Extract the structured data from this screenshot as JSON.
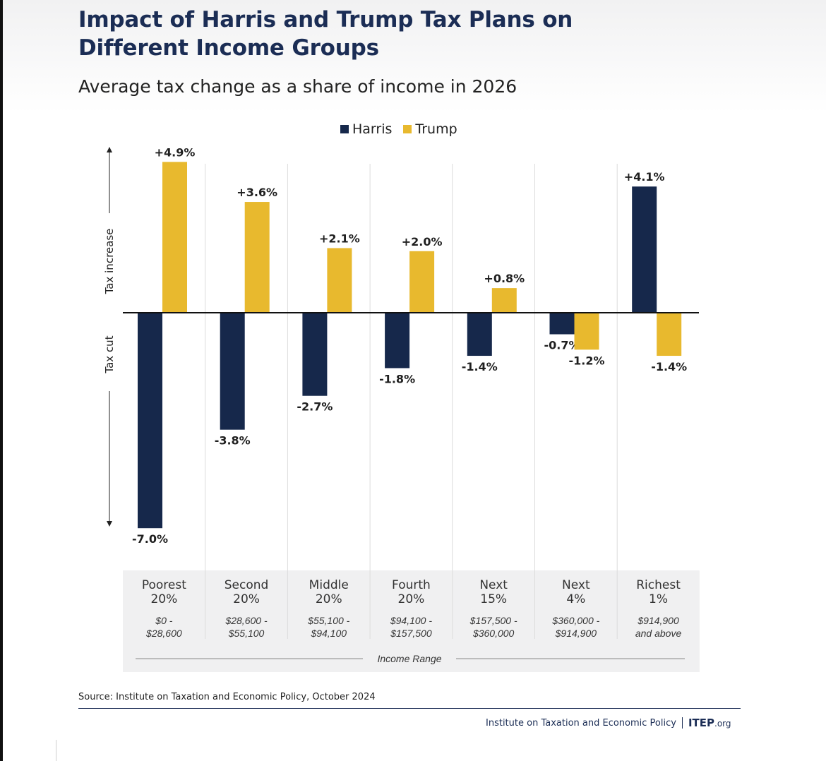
{
  "header": {
    "title_line1": "Impact of Harris and Trump Tax Plans on",
    "title_line2": "Different Income Groups",
    "subtitle": "Average tax change as a share of income in 2026"
  },
  "legend": {
    "harris": "Harris",
    "trump": "Trump"
  },
  "colors": {
    "harris": "#16284b",
    "trump": "#e8b92e",
    "panel": "#f0f0f1"
  },
  "chart_data": {
    "type": "bar",
    "title": "Average tax change as a share of income in 2026",
    "xlabel": "Income Range",
    "ylabel_up": "Tax increase",
    "ylabel_down": "Tax cut",
    "ylim": [
      -7.0,
      4.9
    ],
    "unit": "% of income",
    "categories": [
      {
        "name_line1": "Poorest",
        "name_line2": "20%",
        "range_line1": "$0 -",
        "range_line2": "$28,600"
      },
      {
        "name_line1": "Second",
        "name_line2": "20%",
        "range_line1": "$28,600 -",
        "range_line2": "$55,100"
      },
      {
        "name_line1": "Middle",
        "name_line2": "20%",
        "range_line1": "$55,100 -",
        "range_line2": "$94,100"
      },
      {
        "name_line1": "Fourth",
        "name_line2": "20%",
        "range_line1": "$94,100 -",
        "range_line2": "$157,500"
      },
      {
        "name_line1": "Next",
        "name_line2": "15%",
        "range_line1": "$157,500 -",
        "range_line2": "$360,000"
      },
      {
        "name_line1": "Next",
        "name_line2": "4%",
        "range_line1": "$360,000 -",
        "range_line2": "$914,900"
      },
      {
        "name_line1": "Richest",
        "name_line2": "1%",
        "range_line1": "$914,900",
        "range_line2": "and above"
      }
    ],
    "series": [
      {
        "name": "Harris",
        "values": [
          -7.0,
          -3.8,
          -2.7,
          -1.8,
          -1.4,
          -0.7,
          4.1
        ],
        "labels": [
          "-7.0%",
          "-3.8%",
          "-2.7%",
          "-1.8%",
          "-1.4%",
          "-0.7%",
          "+4.1%"
        ]
      },
      {
        "name": "Trump",
        "values": [
          4.9,
          3.6,
          2.1,
          2.0,
          0.8,
          -1.2,
          -1.4
        ],
        "labels": [
          "+4.9%",
          "+3.6%",
          "+2.1%",
          "+2.0%",
          "+0.8%",
          "-1.2%",
          "-1.4%"
        ]
      }
    ]
  },
  "footer": {
    "source": "Source: Institute on Taxation and Economic Policy, October 2024",
    "org_name": "Institute on Taxation and Economic Policy",
    "brand_main": "ITEP",
    "brand_suffix": ".org"
  }
}
